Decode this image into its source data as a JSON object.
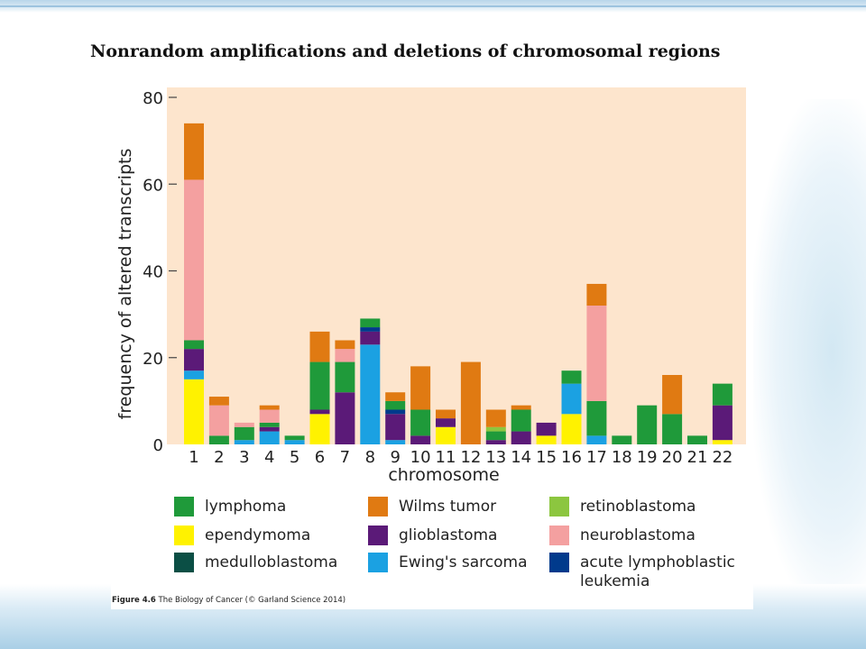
{
  "slide": {
    "title": "Nonrandom amplifications and deletions of chromosomal regions"
  },
  "figure": {
    "caption_bold": "Figure 4.6",
    "caption_rest": "  The Biology of Cancer (© Garland Science 2014)"
  },
  "chart_data": {
    "type": "bar",
    "stacked": true,
    "xlabel": "chromosome",
    "ylabel": "frequency of altered transcripts",
    "ylim": [
      0,
      80
    ],
    "yticks": [
      0,
      20,
      40,
      60,
      80
    ],
    "grid": false,
    "legend_position": "bottom",
    "categories": [
      "1",
      "2",
      "3",
      "4",
      "5",
      "6",
      "7",
      "8",
      "9",
      "10",
      "11",
      "12",
      "13",
      "14",
      "15",
      "16",
      "17",
      "18",
      "19",
      "20",
      "21",
      "22"
    ],
    "series": [
      {
        "name": "ependymoma",
        "color": "#fff200",
        "values": [
          15,
          0,
          0,
          0,
          0,
          7,
          0,
          0,
          0,
          0,
          4,
          0,
          0,
          0,
          2,
          7,
          0,
          0,
          0,
          0,
          0,
          1
        ]
      },
      {
        "name": "Ewing's sarcoma",
        "color": "#1ba1e2",
        "values": [
          2,
          0,
          1,
          3,
          1,
          0,
          0,
          23,
          1,
          0,
          0,
          0,
          0,
          0,
          0,
          7,
          2,
          0,
          0,
          0,
          0,
          0
        ]
      },
      {
        "name": "glioblastoma",
        "color": "#5b1a78",
        "values": [
          5,
          0,
          0,
          1,
          0,
          1,
          12,
          3,
          6,
          2,
          2,
          0,
          1,
          3,
          3,
          0,
          0,
          0,
          0,
          0,
          0,
          8
        ]
      },
      {
        "name": "acute lymphoblastic leukemia",
        "color": "#003a8c",
        "values": [
          0,
          0,
          0,
          0,
          0,
          0,
          0,
          1,
          1,
          0,
          0,
          0,
          0,
          0,
          0,
          0,
          0,
          0,
          0,
          0,
          0,
          0
        ]
      },
      {
        "name": "medulloblastoma",
        "color": "#0b4f45",
        "values": [
          0,
          0,
          0,
          0,
          0,
          0,
          0,
          0,
          0,
          0,
          0,
          0,
          0,
          0,
          0,
          0,
          0,
          0,
          0,
          0,
          0,
          0
        ]
      },
      {
        "name": "lymphoma",
        "color": "#1f9a3a",
        "values": [
          2,
          2,
          3,
          1,
          1,
          11,
          7,
          2,
          2,
          6,
          0,
          0,
          2,
          5,
          0,
          3,
          8,
          2,
          9,
          7,
          2,
          5
        ]
      },
      {
        "name": "retinoblastoma",
        "color": "#8cc63f",
        "values": [
          0,
          0,
          0,
          0,
          0,
          0,
          0,
          0,
          0,
          0,
          0,
          0,
          1,
          0,
          0,
          0,
          0,
          0,
          0,
          0,
          0,
          0
        ]
      },
      {
        "name": "neuroblastoma",
        "color": "#f4a0a0",
        "values": [
          37,
          7,
          1,
          3,
          0,
          0,
          3,
          0,
          0,
          0,
          0,
          0,
          0,
          0,
          0,
          0,
          22,
          0,
          0,
          0,
          0,
          0
        ]
      },
      {
        "name": "Wilms tumor",
        "color": "#e07a12",
        "values": [
          13,
          2,
          0,
          1,
          0,
          7,
          2,
          0,
          2,
          10,
          2,
          19,
          4,
          1,
          0,
          0,
          5,
          0,
          0,
          9,
          0,
          0
        ]
      }
    ],
    "legend": [
      {
        "label": "lymphoma",
        "color": "#1f9a3a"
      },
      {
        "label": "Wilms tumor",
        "color": "#e07a12"
      },
      {
        "label": "retinoblastoma",
        "color": "#8cc63f"
      },
      {
        "label": "ependymoma",
        "color": "#fff200"
      },
      {
        "label": "glioblastoma",
        "color": "#5b1a78"
      },
      {
        "label": "neuroblastoma",
        "color": "#f4a0a0"
      },
      {
        "label": "medulloblastoma",
        "color": "#0b4f45"
      },
      {
        "label": "Ewing's sarcoma",
        "color": "#1ba1e2"
      },
      {
        "label": "acute lymphoblastic\nleukemia",
        "color": "#003a8c"
      }
    ]
  }
}
